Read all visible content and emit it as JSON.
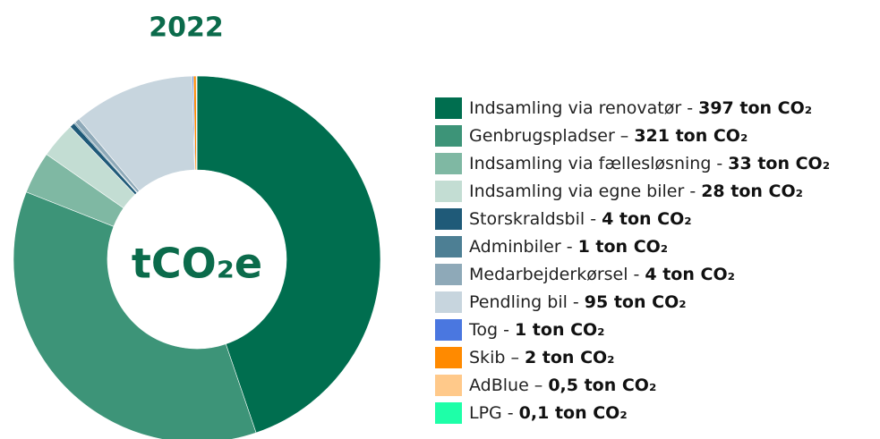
{
  "chart_data": {
    "type": "pie",
    "title": "2022",
    "center_label": "tCO₂e",
    "categories": [
      "Indsamling via renovatør -",
      "Genbrugspladser –",
      "Indsamling via fællesløsning -",
      "Indsamling via egne biler -",
      "Storskraldsbil -",
      "Adminbiler -",
      "Medarbejderkørsel -",
      "Pendling bil -",
      "Tog -",
      "Skib –",
      "AdBlue –",
      "LPG -"
    ],
    "values": [
      397,
      321,
      33,
      28,
      4,
      1,
      4,
      95,
      1,
      2,
      0.5,
      0.1
    ],
    "value_labels": [
      "397 ton CO₂",
      "321 ton CO₂",
      "33 ton CO₂",
      "28 ton CO₂",
      "4 ton CO₂",
      "1 ton CO₂",
      "4 ton CO₂",
      "95 ton CO₂",
      "1 ton CO₂",
      "2 ton CO₂",
      "0,5 ton CO₂",
      "0,1 ton CO₂"
    ],
    "colors": [
      "#006e4f",
      "#3d9478",
      "#7fb8a3",
      "#c3ddd3",
      "#1f5a78",
      "#4d7f94",
      "#8ea9b8",
      "#c7d5de",
      "#4a77e0",
      "#ff8a00",
      "#ffc98a",
      "#1effa8"
    ],
    "legend": "right"
  }
}
